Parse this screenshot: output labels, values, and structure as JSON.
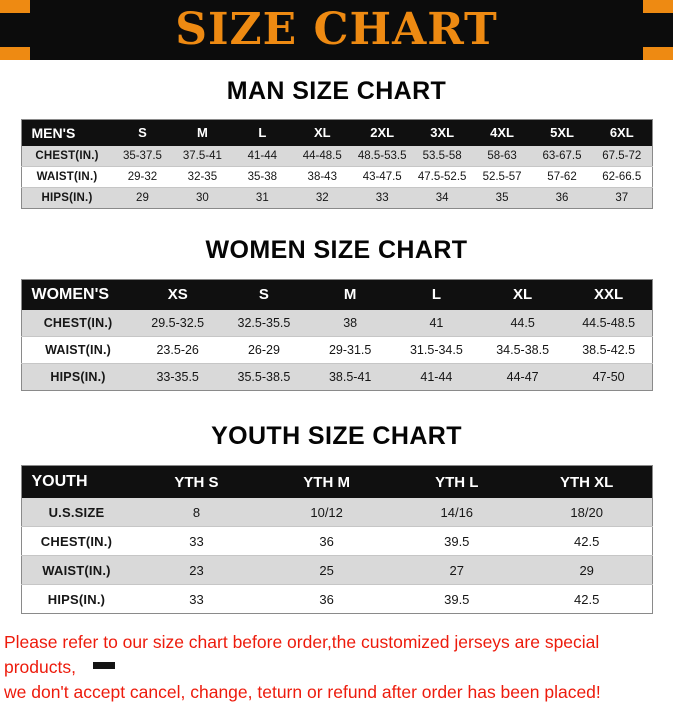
{
  "banner": {
    "title": "SIZE CHART"
  },
  "chart_data": [
    {
      "type": "table",
      "title": "MAN SIZE CHART",
      "columns": [
        "MEN'S",
        "S",
        "M",
        "L",
        "XL",
        "2XL",
        "3XL",
        "4XL",
        "5XL",
        "6XL"
      ],
      "rows": [
        {
          "label": "CHEST(IN.)",
          "values": [
            "35-37.5",
            "37.5-41",
            "41-44",
            "44-48.5",
            "48.5-53.5",
            "53.5-58",
            "58-63",
            "63-67.5",
            "67.5-72"
          ]
        },
        {
          "label": "WAIST(IN.)",
          "values": [
            "29-32",
            "32-35",
            "35-38",
            "38-43",
            "43-47.5",
            "47.5-52.5",
            "52.5-57",
            "57-62",
            "62-66.5"
          ]
        },
        {
          "label": "HIPS(IN.)",
          "values": [
            "29",
            "30",
            "31",
            "32",
            "33",
            "34",
            "35",
            "36",
            "37"
          ]
        }
      ]
    },
    {
      "type": "table",
      "title": "WOMEN SIZE CHART",
      "columns": [
        "WOMEN'S",
        "XS",
        "S",
        "M",
        "L",
        "XL",
        "XXL"
      ],
      "rows": [
        {
          "label": "CHEST(IN.)",
          "values": [
            "29.5-32.5",
            "32.5-35.5",
            "38",
            "41",
            "44.5",
            "44.5-48.5"
          ]
        },
        {
          "label": "WAIST(IN.)",
          "values": [
            "23.5-26",
            "26-29",
            "29-31.5",
            "31.5-34.5",
            "34.5-38.5",
            "38.5-42.5"
          ]
        },
        {
          "label": "HIPS(IN.)",
          "values": [
            "33-35.5",
            "35.5-38.5",
            "38.5-41",
            "41-44",
            "44-47",
            "47-50"
          ]
        }
      ]
    },
    {
      "type": "table",
      "title": "YOUTH SIZE CHART",
      "columns": [
        "YOUTH",
        "YTH S",
        "YTH M",
        "YTH L",
        "YTH XL"
      ],
      "rows": [
        {
          "label": "U.S.SIZE",
          "values": [
            "8",
            "10/12",
            "14/16",
            "18/20"
          ]
        },
        {
          "label": "CHEST(IN.)",
          "values": [
            "33",
            "36",
            "39.5",
            "42.5"
          ]
        },
        {
          "label": "WAIST(IN.)",
          "values": [
            "23",
            "25",
            "27",
            "29"
          ]
        },
        {
          "label": "HIPS(IN.)",
          "values": [
            "33",
            "36",
            "39.5",
            "42.5"
          ]
        }
      ]
    }
  ],
  "footer": {
    "line1": "Please refer to our size chart before order,the customized jerseys are special products,",
    "line2": "we don't accept cancel, change, teturn or refund after order has been placed!"
  },
  "colors": {
    "accent_orange": "#ee8a12",
    "banner_black": "#0c0c0c",
    "table_header_black": "#101010",
    "row_shade_gray": "#d9d9d9",
    "disclaimer_red": "#ed1b0c"
  }
}
